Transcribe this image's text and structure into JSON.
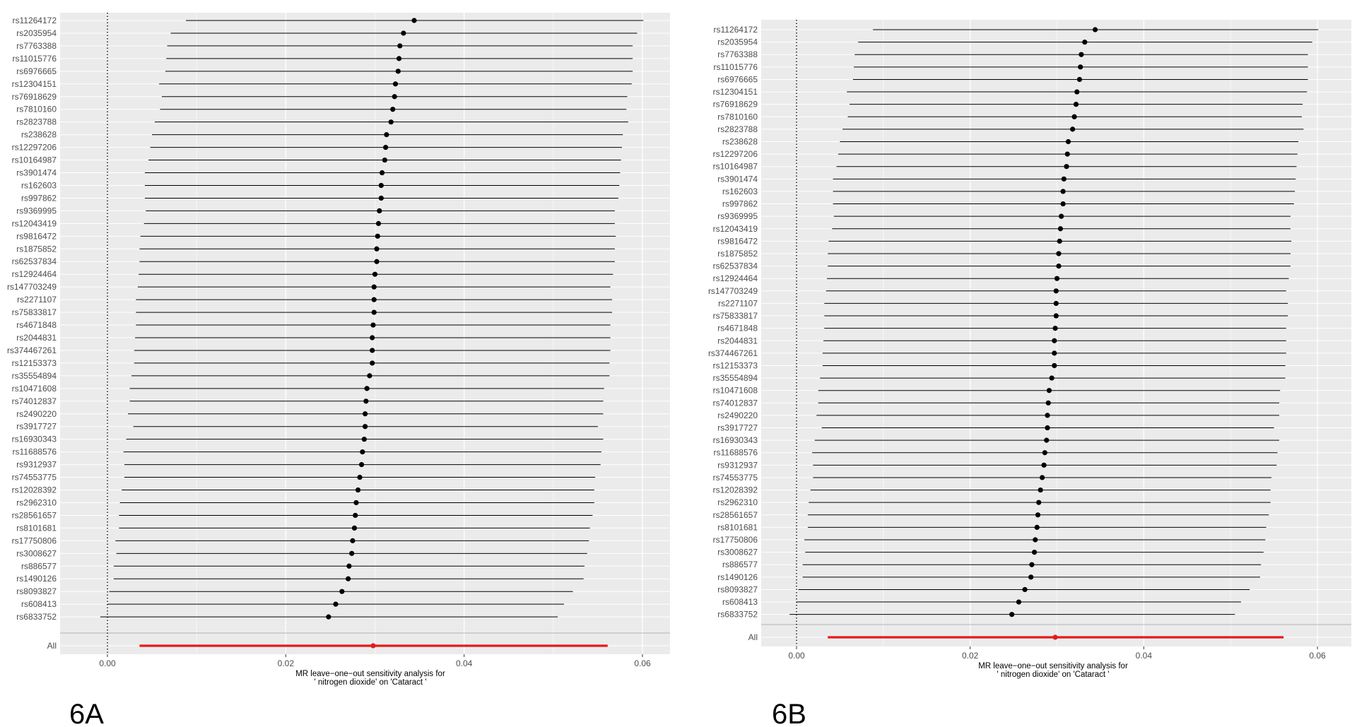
{
  "chart_data": [
    {
      "type": "forest",
      "panel_label": "6A",
      "xlabel_line1": "MR leave−one−out sensitivity analysis for",
      "xlabel_line2": "' nitrogen dioxide' on 'Cataract '",
      "xlim": [
        -0.004,
        0.063
      ],
      "x_ticks": [
        0.0,
        0.02,
        0.04,
        0.06
      ],
      "x_tick_labels": [
        "0.00",
        "0.02",
        "0.04",
        "0.06"
      ],
      "reference_line_x": 0,
      "grid": true,
      "snps": [
        {
          "label": "rs11264172",
          "estimate": 0.0344,
          "lower": 0.0088,
          "upper": 0.0601
        },
        {
          "label": "rs2035954",
          "estimate": 0.0332,
          "lower": 0.0071,
          "upper": 0.0594
        },
        {
          "label": "rs7763388",
          "estimate": 0.0328,
          "lower": 0.0067,
          "upper": 0.0589
        },
        {
          "label": "rs11015776",
          "estimate": 0.0327,
          "lower": 0.0066,
          "upper": 0.0589
        },
        {
          "label": "rs6976665",
          "estimate": 0.0326,
          "lower": 0.0065,
          "upper": 0.0589
        },
        {
          "label": "rs12304151",
          "estimate": 0.0323,
          "lower": 0.0058,
          "upper": 0.0588
        },
        {
          "label": "rs76918629",
          "estimate": 0.0322,
          "lower": 0.0061,
          "upper": 0.0583
        },
        {
          "label": "rs7810160",
          "estimate": 0.032,
          "lower": 0.0059,
          "upper": 0.0582
        },
        {
          "label": "rs2823788",
          "estimate": 0.0318,
          "lower": 0.0053,
          "upper": 0.0584
        },
        {
          "label": "rs238628",
          "estimate": 0.0313,
          "lower": 0.005,
          "upper": 0.0578
        },
        {
          "label": "rs12297206",
          "estimate": 0.0312,
          "lower": 0.0048,
          "upper": 0.0577
        },
        {
          "label": "rs10164987",
          "estimate": 0.0311,
          "lower": 0.0046,
          "upper": 0.0576
        },
        {
          "label": "rs3901474",
          "estimate": 0.0308,
          "lower": 0.0042,
          "upper": 0.0575
        },
        {
          "label": "rs162603",
          "estimate": 0.0307,
          "lower": 0.0042,
          "upper": 0.0574
        },
        {
          "label": "rs997862",
          "estimate": 0.0307,
          "lower": 0.0042,
          "upper": 0.0573
        },
        {
          "label": "rs9369995",
          "estimate": 0.0305,
          "lower": 0.0043,
          "upper": 0.0569
        },
        {
          "label": "rs12043419",
          "estimate": 0.0304,
          "lower": 0.0041,
          "upper": 0.0569
        },
        {
          "label": "rs9816472",
          "estimate": 0.0303,
          "lower": 0.0037,
          "upper": 0.057
        },
        {
          "label": "rs1875852",
          "estimate": 0.0302,
          "lower": 0.0036,
          "upper": 0.0569
        },
        {
          "label": "rs62537834",
          "estimate": 0.0302,
          "lower": 0.0036,
          "upper": 0.0569
        },
        {
          "label": "rs12924464",
          "estimate": 0.03,
          "lower": 0.0035,
          "upper": 0.0567
        },
        {
          "label": "rs147703249",
          "estimate": 0.0299,
          "lower": 0.0034,
          "upper": 0.0564
        },
        {
          "label": "rs2271107",
          "estimate": 0.0299,
          "lower": 0.0032,
          "upper": 0.0566
        },
        {
          "label": "rs75833817",
          "estimate": 0.0299,
          "lower": 0.0032,
          "upper": 0.0566
        },
        {
          "label": "rs4671848",
          "estimate": 0.0298,
          "lower": 0.0032,
          "upper": 0.0564
        },
        {
          "label": "rs2044831",
          "estimate": 0.0297,
          "lower": 0.0031,
          "upper": 0.0564
        },
        {
          "label": "rs374467261",
          "estimate": 0.0297,
          "lower": 0.003,
          "upper": 0.0564
        },
        {
          "label": "rs12153373",
          "estimate": 0.0297,
          "lower": 0.003,
          "upper": 0.0563
        },
        {
          "label": "rs35554894",
          "estimate": 0.0294,
          "lower": 0.0027,
          "upper": 0.0563
        },
        {
          "label": "rs10471608",
          "estimate": 0.0291,
          "lower": 0.0025,
          "upper": 0.0557
        },
        {
          "label": "rs74012837",
          "estimate": 0.029,
          "lower": 0.0025,
          "upper": 0.0556
        },
        {
          "label": "rs2490220",
          "estimate": 0.0289,
          "lower": 0.0023,
          "upper": 0.0556
        },
        {
          "label": "rs3917727",
          "estimate": 0.0289,
          "lower": 0.0029,
          "upper": 0.055
        },
        {
          "label": "rs16930343",
          "estimate": 0.0288,
          "lower": 0.0021,
          "upper": 0.0556
        },
        {
          "label": "rs11688576",
          "estimate": 0.0286,
          "lower": 0.0018,
          "upper": 0.0554
        },
        {
          "label": "rs9312937",
          "estimate": 0.0285,
          "lower": 0.0019,
          "upper": 0.0553
        },
        {
          "label": "rs74553775",
          "estimate": 0.0283,
          "lower": 0.0019,
          "upper": 0.0547
        },
        {
          "label": "rs12028392",
          "estimate": 0.0281,
          "lower": 0.0016,
          "upper": 0.0546
        },
        {
          "label": "rs2962310",
          "estimate": 0.0279,
          "lower": 0.0014,
          "upper": 0.0546
        },
        {
          "label": "rs28561657",
          "estimate": 0.0278,
          "lower": 0.0013,
          "upper": 0.0544
        },
        {
          "label": "rs8101681",
          "estimate": 0.0277,
          "lower": 0.0013,
          "upper": 0.0541
        },
        {
          "label": "rs17750806",
          "estimate": 0.0275,
          "lower": 0.0009,
          "upper": 0.054
        },
        {
          "label": "rs3008627",
          "estimate": 0.0274,
          "lower": 0.001,
          "upper": 0.0538
        },
        {
          "label": "rs886577",
          "estimate": 0.0271,
          "lower": 0.0007,
          "upper": 0.0535
        },
        {
          "label": "rs1490126",
          "estimate": 0.027,
          "lower": 0.0007,
          "upper": 0.0534
        },
        {
          "label": "rs8093827",
          "estimate": 0.0263,
          "lower": 0.0002,
          "upper": 0.0522
        },
        {
          "label": "rs608413",
          "estimate": 0.0256,
          "lower": 0.0,
          "upper": 0.0512
        },
        {
          "label": "rs6833752",
          "estimate": 0.0248,
          "lower": -0.0008,
          "upper": 0.0505
        }
      ],
      "overall": {
        "label": "All",
        "estimate": 0.0298,
        "lower": 0.0036,
        "upper": 0.0561
      }
    },
    {
      "type": "forest",
      "panel_label": "6B",
      "xlabel_line1": "MR leave−one−out sensitivity analysis for",
      "xlabel_line2": "' nitrogen dioxide' on 'Cataract '",
      "xlim": [
        -0.004,
        0.063
      ],
      "x_ticks": [
        0.0,
        0.02,
        0.04,
        0.06
      ],
      "x_tick_labels": [
        "0.00",
        "0.02",
        "0.04",
        "0.06"
      ],
      "reference_line_x": 0,
      "grid": true,
      "snps": [
        {
          "label": "rs11264172",
          "estimate": 0.0344,
          "lower": 0.0088,
          "upper": 0.0601
        },
        {
          "label": "rs2035954",
          "estimate": 0.0332,
          "lower": 0.0071,
          "upper": 0.0594
        },
        {
          "label": "rs7763388",
          "estimate": 0.0328,
          "lower": 0.0067,
          "upper": 0.0589
        },
        {
          "label": "rs11015776",
          "estimate": 0.0327,
          "lower": 0.0066,
          "upper": 0.0589
        },
        {
          "label": "rs6976665",
          "estimate": 0.0326,
          "lower": 0.0065,
          "upper": 0.0589
        },
        {
          "label": "rs12304151",
          "estimate": 0.0323,
          "lower": 0.0058,
          "upper": 0.0588
        },
        {
          "label": "rs76918629",
          "estimate": 0.0322,
          "lower": 0.0061,
          "upper": 0.0583
        },
        {
          "label": "rs7810160",
          "estimate": 0.032,
          "lower": 0.0059,
          "upper": 0.0582
        },
        {
          "label": "rs2823788",
          "estimate": 0.0318,
          "lower": 0.0053,
          "upper": 0.0584
        },
        {
          "label": "rs238628",
          "estimate": 0.0313,
          "lower": 0.005,
          "upper": 0.0578
        },
        {
          "label": "rs12297206",
          "estimate": 0.0312,
          "lower": 0.0048,
          "upper": 0.0577
        },
        {
          "label": "rs10164987",
          "estimate": 0.0311,
          "lower": 0.0046,
          "upper": 0.0576
        },
        {
          "label": "rs3901474",
          "estimate": 0.0308,
          "lower": 0.0042,
          "upper": 0.0575
        },
        {
          "label": "rs162603",
          "estimate": 0.0307,
          "lower": 0.0042,
          "upper": 0.0574
        },
        {
          "label": "rs997862",
          "estimate": 0.0307,
          "lower": 0.0042,
          "upper": 0.0573
        },
        {
          "label": "rs9369995",
          "estimate": 0.0305,
          "lower": 0.0043,
          "upper": 0.0569
        },
        {
          "label": "rs12043419",
          "estimate": 0.0304,
          "lower": 0.0041,
          "upper": 0.0569
        },
        {
          "label": "rs9816472",
          "estimate": 0.0303,
          "lower": 0.0037,
          "upper": 0.057
        },
        {
          "label": "rs1875852",
          "estimate": 0.0302,
          "lower": 0.0036,
          "upper": 0.0569
        },
        {
          "label": "rs62537834",
          "estimate": 0.0302,
          "lower": 0.0036,
          "upper": 0.0569
        },
        {
          "label": "rs12924464",
          "estimate": 0.03,
          "lower": 0.0035,
          "upper": 0.0567
        },
        {
          "label": "rs147703249",
          "estimate": 0.0299,
          "lower": 0.0034,
          "upper": 0.0564
        },
        {
          "label": "rs2271107",
          "estimate": 0.0299,
          "lower": 0.0032,
          "upper": 0.0566
        },
        {
          "label": "rs75833817",
          "estimate": 0.0299,
          "lower": 0.0032,
          "upper": 0.0566
        },
        {
          "label": "rs4671848",
          "estimate": 0.0298,
          "lower": 0.0032,
          "upper": 0.0564
        },
        {
          "label": "rs2044831",
          "estimate": 0.0297,
          "lower": 0.0031,
          "upper": 0.0564
        },
        {
          "label": "rs374467261",
          "estimate": 0.0297,
          "lower": 0.003,
          "upper": 0.0564
        },
        {
          "label": "rs12153373",
          "estimate": 0.0297,
          "lower": 0.003,
          "upper": 0.0563
        },
        {
          "label": "rs35554894",
          "estimate": 0.0294,
          "lower": 0.0027,
          "upper": 0.0563
        },
        {
          "label": "rs10471608",
          "estimate": 0.0291,
          "lower": 0.0025,
          "upper": 0.0557
        },
        {
          "label": "rs74012837",
          "estimate": 0.029,
          "lower": 0.0025,
          "upper": 0.0556
        },
        {
          "label": "rs2490220",
          "estimate": 0.0289,
          "lower": 0.0023,
          "upper": 0.0556
        },
        {
          "label": "rs3917727",
          "estimate": 0.0289,
          "lower": 0.0029,
          "upper": 0.055
        },
        {
          "label": "rs16930343",
          "estimate": 0.0288,
          "lower": 0.0021,
          "upper": 0.0556
        },
        {
          "label": "rs11688576",
          "estimate": 0.0286,
          "lower": 0.0018,
          "upper": 0.0554
        },
        {
          "label": "rs9312937",
          "estimate": 0.0285,
          "lower": 0.0019,
          "upper": 0.0553
        },
        {
          "label": "rs74553775",
          "estimate": 0.0283,
          "lower": 0.0019,
          "upper": 0.0547
        },
        {
          "label": "rs12028392",
          "estimate": 0.0281,
          "lower": 0.0016,
          "upper": 0.0546
        },
        {
          "label": "rs2962310",
          "estimate": 0.0279,
          "lower": 0.0014,
          "upper": 0.0546
        },
        {
          "label": "rs28561657",
          "estimate": 0.0278,
          "lower": 0.0013,
          "upper": 0.0544
        },
        {
          "label": "rs8101681",
          "estimate": 0.0277,
          "lower": 0.0013,
          "upper": 0.0541
        },
        {
          "label": "rs17750806",
          "estimate": 0.0275,
          "lower": 0.0009,
          "upper": 0.054
        },
        {
          "label": "rs3008627",
          "estimate": 0.0274,
          "lower": 0.001,
          "upper": 0.0538
        },
        {
          "label": "rs886577",
          "estimate": 0.0271,
          "lower": 0.0007,
          "upper": 0.0535
        },
        {
          "label": "rs1490126",
          "estimate": 0.027,
          "lower": 0.0007,
          "upper": 0.0534
        },
        {
          "label": "rs8093827",
          "estimate": 0.0263,
          "lower": 0.0002,
          "upper": 0.0522
        },
        {
          "label": "rs608413",
          "estimate": 0.0256,
          "lower": 0.0,
          "upper": 0.0512
        },
        {
          "label": "rs6833752",
          "estimate": 0.0248,
          "lower": -0.0008,
          "upper": 0.0505
        }
      ],
      "overall": {
        "label": "All",
        "estimate": 0.0298,
        "lower": 0.0036,
        "upper": 0.0561
      }
    }
  ],
  "colors": {
    "panel_background": "#ebebeb",
    "gridline": "#ffffff",
    "point": "#000000",
    "overall": "#e41a1c",
    "separator": "#b3b3b3"
  }
}
